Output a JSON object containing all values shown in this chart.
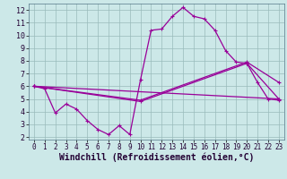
{
  "xlabel": "Windchill (Refroidissement éolien,°C)",
  "xlim": [
    -0.5,
    23.5
  ],
  "ylim": [
    1.8,
    12.5
  ],
  "xticks": [
    0,
    1,
    2,
    3,
    4,
    5,
    6,
    7,
    8,
    9,
    10,
    11,
    12,
    13,
    14,
    15,
    16,
    17,
    18,
    19,
    20,
    21,
    22,
    23
  ],
  "yticks": [
    2,
    3,
    4,
    5,
    6,
    7,
    8,
    9,
    10,
    11,
    12
  ],
  "bg_color": "#cce8e8",
  "grid_color": "#99bbbb",
  "line_color": "#990099",
  "line1_x": [
    0,
    1,
    2,
    3,
    4,
    5,
    6,
    7,
    8,
    9,
    10,
    11,
    12,
    13,
    14,
    15,
    16,
    17,
    18,
    19,
    20,
    21,
    22,
    23
  ],
  "line1_y": [
    6.0,
    5.8,
    3.9,
    4.6,
    4.2,
    3.3,
    2.6,
    2.2,
    2.9,
    2.2,
    6.5,
    10.4,
    10.5,
    11.5,
    12.2,
    11.5,
    11.3,
    10.4,
    8.8,
    7.9,
    7.8,
    6.3,
    5.0,
    4.9
  ],
  "line2_x": [
    0,
    10,
    20,
    23
  ],
  "line2_y": [
    6.0,
    4.9,
    7.9,
    6.3
  ],
  "line3_x": [
    0,
    10,
    20,
    23
  ],
  "line3_y": [
    6.0,
    4.8,
    7.8,
    5.0
  ],
  "line4_x": [
    0,
    23
  ],
  "line4_y": [
    6.0,
    5.0
  ],
  "tick_fontsize": 5.5,
  "xlabel_fontsize": 7.0
}
